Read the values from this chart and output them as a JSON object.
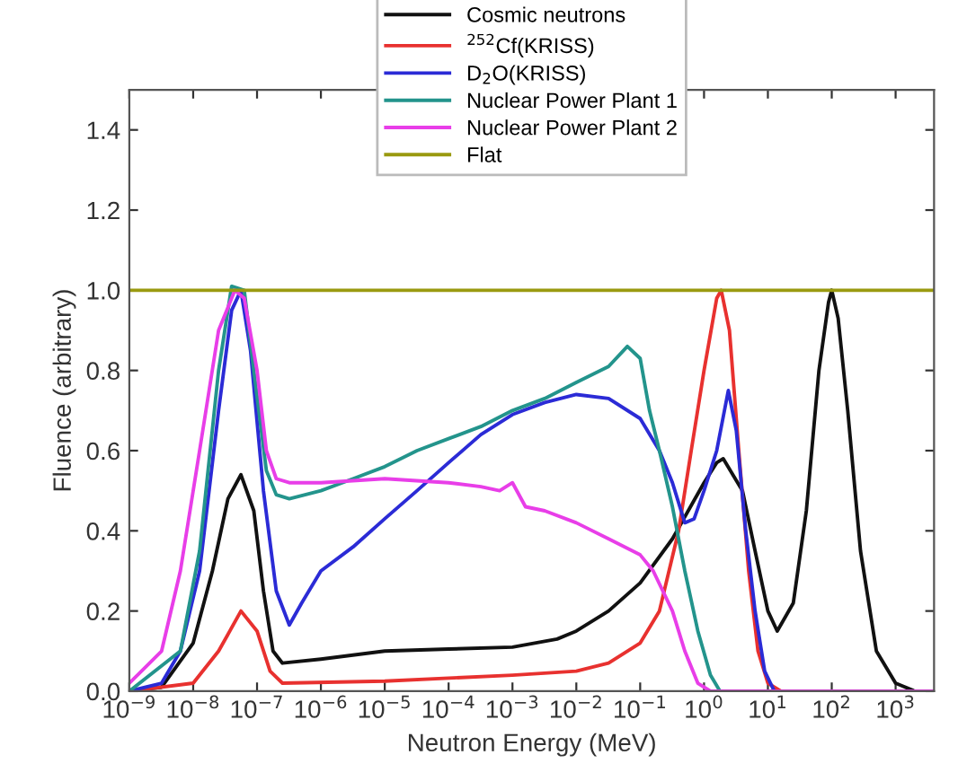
{
  "chart_data": {
    "type": "line",
    "xlabel": "Neutron Energy (MeV)",
    "ylabel": "Fluence (arbitrary)",
    "log": "x",
    "grid": false,
    "legend": "top",
    "marker": "none",
    "line_style": "solid",
    "xlim": [
      1e-09,
      4000
    ],
    "ylim": [
      0,
      1.5
    ],
    "xticks": [
      {
        "value": 1e-09,
        "label": "10$^{−9}$"
      },
      {
        "value": 1e-08,
        "label": "10$^{−8}$"
      },
      {
        "value": 1e-07,
        "label": "10$^{−7}$"
      },
      {
        "value": 1e-06,
        "label": "10$^{−6}$"
      },
      {
        "value": 1e-05,
        "label": "10$^{−5}$"
      },
      {
        "value": 0.0001,
        "label": "10$^{−4}$"
      },
      {
        "value": 0.001,
        "label": "10$^{−3}$"
      },
      {
        "value": 0.01,
        "label": "10$^{−2}$"
      },
      {
        "value": 0.1,
        "label": "10$^{−1}$"
      },
      {
        "value": 1,
        "label": "10$^{0}$"
      },
      {
        "value": 10,
        "label": "10$^{1}$"
      },
      {
        "value": 100,
        "label": "10$^{2}$"
      },
      {
        "value": 1000,
        "label": "10$^{3}$"
      }
    ],
    "yticks": [
      {
        "value": 0,
        "label": "0.0"
      },
      {
        "value": 0.2,
        "label": "0.2"
      },
      {
        "value": 0.4,
        "label": "0.4"
      },
      {
        "value": 0.6,
        "label": "0.6"
      },
      {
        "value": 0.8,
        "label": "0.8"
      },
      {
        "value": 1.0,
        "label": "1.0"
      },
      {
        "value": 1.2,
        "label": "1.2"
      },
      {
        "value": 1.4,
        "label": "1.4"
      }
    ],
    "series": [
      {
        "name": "Cosmic neutrons",
        "color": "#111111",
        "x": [
          1e-09,
          3.2e-09,
          1e-08,
          2e-08,
          3.5e-08,
          5.6e-08,
          8.9e-08,
          1.26e-07,
          1.78e-07,
          2.5e-07,
          1e-06,
          1e-05,
          0.0001,
          0.001,
          0.005,
          0.01,
          0.032,
          0.1,
          0.32,
          1,
          1.58,
          2,
          4,
          6.3,
          10,
          14,
          25,
          40,
          63,
          89,
          100,
          126,
          178,
          282,
          500,
          1000,
          2000,
          4000
        ],
        "values": [
          0,
          0.01,
          0.12,
          0.3,
          0.48,
          0.54,
          0.45,
          0.25,
          0.1,
          0.07,
          0.08,
          0.1,
          0.105,
          0.11,
          0.13,
          0.15,
          0.2,
          0.27,
          0.38,
          0.52,
          0.57,
          0.58,
          0.5,
          0.35,
          0.2,
          0.15,
          0.22,
          0.45,
          0.8,
          0.97,
          1.0,
          0.93,
          0.7,
          0.35,
          0.1,
          0.02,
          0,
          0
        ]
      },
      {
        "name": "$^{252}$Cf(KRISS)",
        "color": "#e8312f",
        "x": [
          1e-09,
          1e-08,
          2.5e-08,
          5.6e-08,
          1e-07,
          1.6e-07,
          2.5e-07,
          1e-05,
          0.001,
          0.01,
          0.032,
          0.1,
          0.2,
          0.4,
          0.63,
          1,
          1.58,
          1.86,
          2.5,
          3.5,
          5,
          7,
          10,
          16,
          4000
        ],
        "values": [
          0,
          0.02,
          0.1,
          0.2,
          0.15,
          0.05,
          0.02,
          0.025,
          0.04,
          0.05,
          0.07,
          0.12,
          0.2,
          0.4,
          0.6,
          0.8,
          0.98,
          1.0,
          0.9,
          0.6,
          0.3,
          0.1,
          0.02,
          0,
          0
        ]
      },
      {
        "name": "D$_{2}$O(KRISS)",
        "color": "#2b2bd6",
        "x": [
          1e-09,
          3.2e-09,
          6.3e-09,
          1.26e-08,
          2.5e-08,
          4e-08,
          5.6e-08,
          7.9e-08,
          1.26e-07,
          2e-07,
          3.2e-07,
          5e-07,
          1e-06,
          3.2e-06,
          1e-05,
          3.2e-05,
          0.0001,
          0.00032,
          0.001,
          0.0032,
          0.01,
          0.032,
          0.1,
          0.2,
          0.32,
          0.5,
          0.7,
          1,
          1.58,
          2.4,
          3.2,
          4.5,
          6.3,
          8.9,
          12.6,
          4000
        ],
        "values": [
          0,
          0.02,
          0.1,
          0.3,
          0.7,
          0.95,
          1.0,
          0.85,
          0.5,
          0.25,
          0.165,
          0.22,
          0.3,
          0.36,
          0.43,
          0.5,
          0.57,
          0.64,
          0.69,
          0.72,
          0.74,
          0.73,
          0.68,
          0.6,
          0.52,
          0.42,
          0.43,
          0.5,
          0.6,
          0.75,
          0.65,
          0.4,
          0.2,
          0.05,
          0,
          0
        ]
      },
      {
        "name": "Nuclear Power Plant 1",
        "color": "#23948c",
        "x": [
          1e-09,
          6.3e-09,
          1.26e-08,
          2.5e-08,
          4e-08,
          6.3e-08,
          8.9e-08,
          1.4e-07,
          2e-07,
          3.2e-07,
          1e-06,
          3.2e-06,
          1e-05,
          3.2e-05,
          0.0001,
          0.00032,
          0.001,
          0.0032,
          0.01,
          0.032,
          0.063,
          0.1,
          0.14,
          0.2,
          0.32,
          0.5,
          0.8,
          1.26,
          1.78,
          4000
        ],
        "values": [
          0,
          0.1,
          0.35,
          0.8,
          1.01,
          1.0,
          0.8,
          0.55,
          0.49,
          0.48,
          0.5,
          0.53,
          0.56,
          0.6,
          0.63,
          0.66,
          0.7,
          0.73,
          0.77,
          0.81,
          0.86,
          0.83,
          0.7,
          0.6,
          0.46,
          0.3,
          0.15,
          0.04,
          0,
          0
        ]
      },
      {
        "name": "Nuclear Power Plant 2",
        "color": "#e83ee8",
        "x": [
          1e-09,
          3.2e-09,
          6.3e-09,
          1.26e-08,
          2.5e-08,
          4.5e-08,
          6.3e-08,
          1e-07,
          1.4e-07,
          2e-07,
          3.2e-07,
          1e-06,
          1e-05,
          0.0001,
          0.00032,
          0.00063,
          0.001,
          0.0016,
          0.0032,
          0.01,
          0.032,
          0.1,
          0.16,
          0.32,
          0.5,
          0.8,
          1.26,
          4000
        ],
        "values": [
          0.02,
          0.1,
          0.3,
          0.6,
          0.9,
          1.0,
          0.98,
          0.8,
          0.6,
          0.53,
          0.52,
          0.52,
          0.53,
          0.52,
          0.51,
          0.5,
          0.52,
          0.46,
          0.45,
          0.42,
          0.38,
          0.34,
          0.3,
          0.2,
          0.1,
          0.02,
          0,
          0
        ]
      },
      {
        "name": "Flat",
        "color": "#9a9a10",
        "x": [
          1e-09,
          4000
        ],
        "values": [
          1,
          1
        ]
      }
    ]
  }
}
